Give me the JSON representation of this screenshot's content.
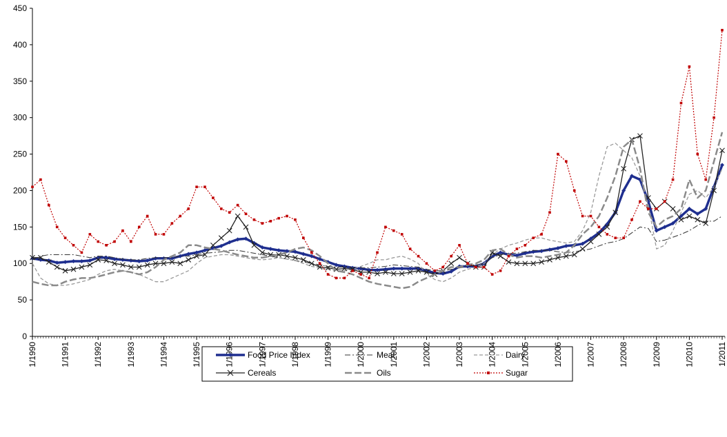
{
  "chart_data": {
    "type": "line",
    "x": [
      "1/1990",
      "4/1990",
      "7/1990",
      "10/1990",
      "1/1991",
      "4/1991",
      "7/1991",
      "10/1991",
      "1/1992",
      "4/1992",
      "7/1992",
      "10/1992",
      "1/1993",
      "4/1993",
      "7/1993",
      "10/1993",
      "1/1994",
      "4/1994",
      "7/1994",
      "10/1994",
      "1/1995",
      "4/1995",
      "7/1995",
      "10/1995",
      "1/1996",
      "4/1996",
      "7/1996",
      "10/1996",
      "1/1997",
      "4/1997",
      "7/1997",
      "10/1997",
      "1/1998",
      "4/1998",
      "7/1998",
      "10/1998",
      "1/1999",
      "4/1999",
      "7/1999",
      "10/1999",
      "1/2000",
      "4/2000",
      "7/2000",
      "10/2000",
      "1/2001",
      "4/2001",
      "7/2001",
      "10/2001",
      "1/2002",
      "4/2002",
      "7/2002",
      "10/2002",
      "1/2003",
      "4/2003",
      "7/2003",
      "10/2003",
      "1/2004",
      "4/2004",
      "7/2004",
      "10/2004",
      "1/2005",
      "4/2005",
      "7/2005",
      "10/2005",
      "1/2006",
      "4/2006",
      "7/2006",
      "10/2006",
      "1/2007",
      "4/2007",
      "7/2007",
      "10/2007",
      "1/2008",
      "4/2008",
      "7/2008",
      "10/2008",
      "1/2009",
      "4/2009",
      "7/2009",
      "10/2009",
      "1/2010",
      "4/2010",
      "7/2010",
      "10/2010",
      "1/2011"
    ],
    "xticks": [
      "1/1990",
      "1/1991",
      "1/1992",
      "1/1993",
      "1/1994",
      "1/1995",
      "1/1996",
      "1/1997",
      "1/1998",
      "1/1999",
      "1/2000",
      "1/2001",
      "1/2002",
      "1/2003",
      "1/2004",
      "1/2005",
      "1/2006",
      "1/2007",
      "1/2008",
      "1/2009",
      "1/2010",
      "1/2011"
    ],
    "xlim": [
      "1/1990",
      "1/2011"
    ],
    "ylim": [
      0,
      450
    ],
    "yticks": [
      0,
      50,
      100,
      150,
      200,
      250,
      300,
      350,
      400,
      450
    ],
    "series": [
      {
        "name": "Food Price Index",
        "color": "#1f2f8f",
        "values": [
          107,
          105,
          104,
          101,
          102,
          103,
          103,
          104,
          108,
          108,
          106,
          105,
          104,
          103,
          104,
          107,
          107,
          107,
          110,
          113,
          115,
          118,
          121,
          124,
          129,
          133,
          134,
          128,
          122,
          120,
          118,
          117,
          116,
          113,
          110,
          106,
          102,
          98,
          96,
          94,
          93,
          91,
          91,
          92,
          93,
          93,
          93,
          93,
          90,
          87,
          86,
          89,
          96,
          96,
          96,
          100,
          110,
          115,
          112,
          111,
          114,
          116,
          117,
          119,
          121,
          124,
          125,
          127,
          134,
          142,
          154,
          170,
          200,
          220,
          215,
          185,
          145,
          150,
          155,
          165,
          175,
          168,
          175,
          205,
          235
        ]
      },
      {
        "name": "Meat",
        "color": "#333333",
        "values": [
          105,
          110,
          112,
          112,
          112,
          112,
          110,
          108,
          110,
          110,
          108,
          106,
          105,
          105,
          107,
          108,
          108,
          108,
          110,
          110,
          112,
          114,
          115,
          116,
          118,
          118,
          116,
          114,
          112,
          110,
          108,
          106,
          104,
          102,
          100,
          98,
          96,
          95,
          95,
          94,
          94,
          94,
          95,
          96,
          98,
          97,
          96,
          95,
          92,
          90,
          90,
          92,
          94,
          96,
          98,
          100,
          108,
          112,
          114,
          114,
          116,
          118,
          118,
          118,
          116,
          115,
          116,
          118,
          120,
          124,
          128,
          130,
          134,
          142,
          150,
          148,
          130,
          132,
          136,
          140,
          145,
          152,
          158,
          158,
          165
        ]
      },
      {
        "name": "Dairy",
        "color": "#999999",
        "values": [
          100,
          80,
          72,
          70,
          70,
          72,
          75,
          78,
          85,
          90,
          92,
          90,
          88,
          85,
          80,
          75,
          75,
          80,
          85,
          90,
          100,
          108,
          110,
          112,
          112,
          110,
          108,
          106,
          105,
          106,
          108,
          106,
          104,
          100,
          96,
          94,
          92,
          90,
          90,
          92,
          96,
          100,
          105,
          105,
          108,
          110,
          106,
          100,
          85,
          78,
          75,
          80,
          88,
          92,
          95,
          100,
          112,
          120,
          125,
          128,
          132,
          135,
          135,
          132,
          130,
          128,
          130,
          145,
          170,
          220,
          260,
          265,
          255,
          245,
          220,
          180,
          120,
          125,
          145,
          170,
          195,
          200,
          190,
          205,
          230
        ]
      },
      {
        "name": "Cereals",
        "color": "#222222",
        "values": [
          108,
          108,
          102,
          95,
          90,
          92,
          95,
          98,
          105,
          104,
          100,
          98,
          95,
          95,
          98,
          100,
          100,
          102,
          100,
          105,
          110,
          112,
          125,
          135,
          145,
          165,
          150,
          125,
          115,
          112,
          112,
          110,
          108,
          105,
          100,
          95,
          94,
          92,
          93,
          92,
          88,
          88,
          86,
          88,
          86,
          86,
          88,
          90,
          88,
          85,
          90,
          100,
          108,
          100,
          95,
          95,
          115,
          110,
          102,
          100,
          100,
          100,
          102,
          105,
          108,
          110,
          112,
          120,
          130,
          140,
          150,
          170,
          230,
          270,
          275,
          190,
          175,
          185,
          175,
          160,
          165,
          160,
          155,
          200,
          255
        ]
      },
      {
        "name": "Oils",
        "color": "#8a8a8a",
        "values": [
          75,
          72,
          70,
          70,
          75,
          78,
          80,
          80,
          82,
          85,
          88,
          90,
          88,
          85,
          88,
          95,
          105,
          110,
          115,
          125,
          125,
          122,
          120,
          118,
          115,
          112,
          110,
          108,
          108,
          110,
          112,
          115,
          120,
          122,
          118,
          110,
          100,
          90,
          88,
          85,
          80,
          75,
          72,
          70,
          68,
          66,
          68,
          75,
          80,
          85,
          90,
          95,
          95,
          98,
          100,
          105,
          118,
          120,
          112,
          108,
          110,
          110,
          108,
          110,
          112,
          115,
          125,
          140,
          150,
          165,
          190,
          220,
          260,
          270,
          230,
          170,
          150,
          160,
          165,
          175,
          215,
          190,
          200,
          240,
          280
        ]
      },
      {
        "name": "Sugar",
        "color": "#c00000",
        "values": [
          205,
          215,
          180,
          150,
          135,
          125,
          115,
          140,
          130,
          125,
          130,
          145,
          130,
          150,
          165,
          140,
          140,
          155,
          165,
          175,
          205,
          205,
          190,
          175,
          170,
          180,
          168,
          160,
          155,
          158,
          162,
          165,
          160,
          135,
          115,
          100,
          85,
          80,
          80,
          90,
          85,
          80,
          115,
          150,
          145,
          140,
          120,
          110,
          100,
          90,
          95,
          110,
          125,
          100,
          95,
          95,
          85,
          90,
          110,
          120,
          125,
          135,
          140,
          170,
          250,
          240,
          200,
          165,
          165,
          150,
          140,
          135,
          135,
          160,
          185,
          175,
          175,
          185,
          215,
          320,
          370,
          250,
          215,
          300,
          420
        ]
      }
    ]
  }
}
